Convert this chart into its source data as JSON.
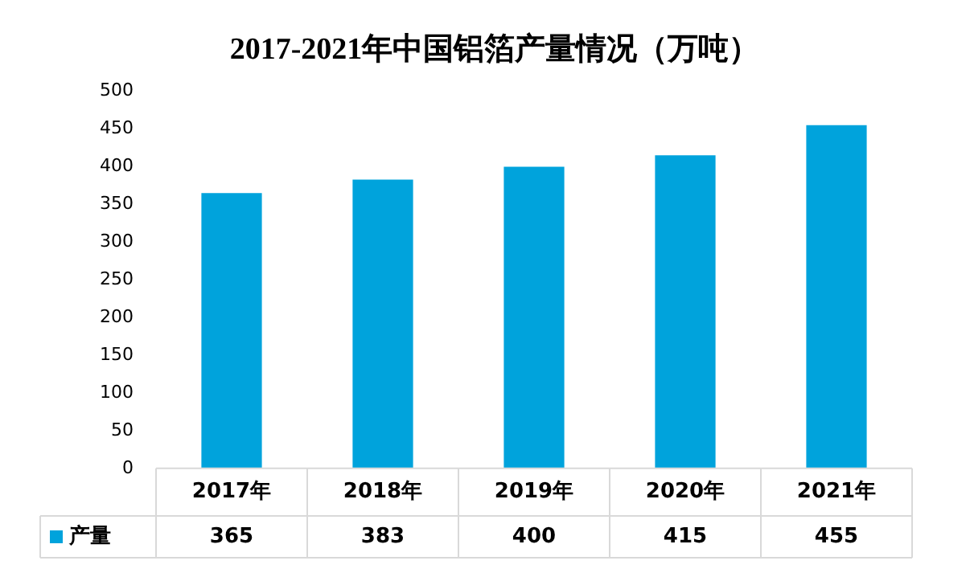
{
  "chart_data": {
    "type": "bar",
    "title": "2017-2021年中国铝箔产量情况（万吨）",
    "categories": [
      "2017年",
      "2018年",
      "2019年",
      "2020年",
      "2021年"
    ],
    "series": [
      {
        "name": "产量",
        "color": "#00a3dc",
        "values": [
          365,
          383,
          400,
          415,
          455
        ]
      }
    ],
    "ylim": [
      0,
      500
    ],
    "yticks": [
      0,
      50,
      100,
      150,
      200,
      250,
      300,
      350,
      400,
      450,
      500
    ],
    "grid": false,
    "legend": "bottom",
    "data_labels": true
  }
}
